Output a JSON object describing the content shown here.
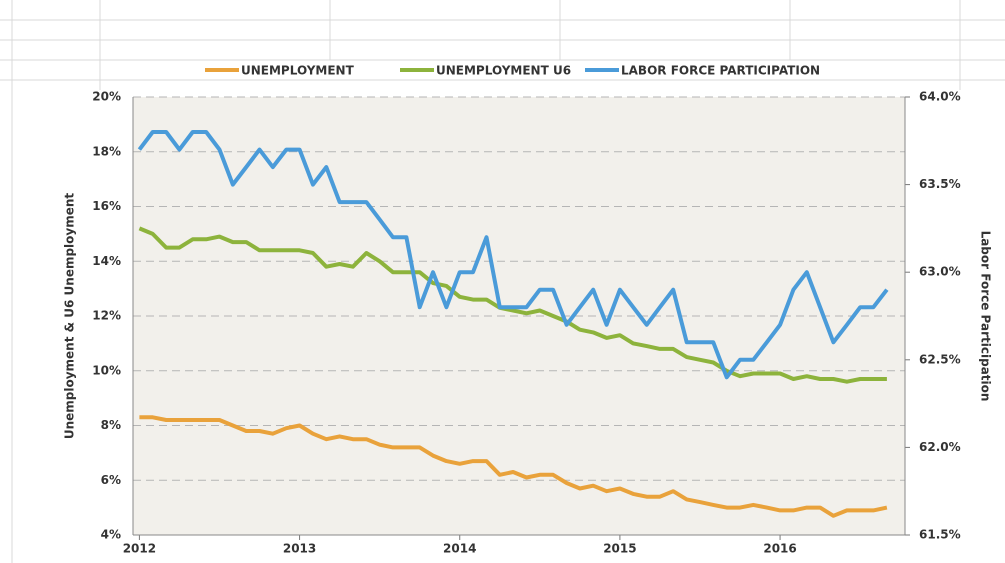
{
  "chart_data": {
    "type": "line",
    "series": [
      {
        "name": "UNEMPLOYMENT",
        "color": "#e9a23b",
        "axis": "y",
        "values": [
          8.3,
          8.3,
          8.2,
          8.2,
          8.2,
          8.2,
          8.2,
          8.0,
          7.8,
          7.8,
          7.7,
          7.9,
          8.0,
          7.7,
          7.5,
          7.6,
          7.5,
          7.5,
          7.3,
          7.2,
          7.2,
          7.2,
          6.9,
          6.7,
          6.6,
          6.7,
          6.7,
          6.2,
          6.3,
          6.1,
          6.2,
          6.2,
          5.9,
          5.7,
          5.8,
          5.6,
          5.7,
          5.5,
          5.4,
          5.4,
          5.6,
          5.3,
          5.2,
          5.1,
          5.0,
          5.0,
          5.1,
          5.0,
          4.9,
          4.9,
          5.0,
          5.0,
          4.7,
          4.9,
          4.9,
          4.9,
          5.0
        ]
      },
      {
        "name": "UNEMPLOYMENT U6",
        "color": "#8db33c",
        "axis": "y",
        "values": [
          15.2,
          15.0,
          14.5,
          14.5,
          14.8,
          14.8,
          14.9,
          14.7,
          14.7,
          14.4,
          14.4,
          14.4,
          14.4,
          14.3,
          13.8,
          13.9,
          13.8,
          14.3,
          14.0,
          13.6,
          13.6,
          13.6,
          13.2,
          13.1,
          12.7,
          12.6,
          12.6,
          12.3,
          12.2,
          12.1,
          12.2,
          12.0,
          11.8,
          11.5,
          11.4,
          11.2,
          11.3,
          11.0,
          10.9,
          10.8,
          10.8,
          10.5,
          10.4,
          10.3,
          10.0,
          9.8,
          9.9,
          9.9,
          9.9,
          9.7,
          9.8,
          9.7,
          9.7,
          9.6,
          9.7,
          9.7,
          9.7
        ]
      },
      {
        "name": "LABOR FORCE PARTICIPATION",
        "color": "#4a9bd9",
        "axis": "y2",
        "values": [
          63.7,
          63.8,
          63.8,
          63.7,
          63.8,
          63.8,
          63.7,
          63.5,
          63.6,
          63.7,
          63.6,
          63.7,
          63.7,
          63.5,
          63.6,
          63.4,
          63.4,
          63.4,
          63.3,
          63.2,
          63.2,
          62.8,
          63.0,
          62.8,
          63.0,
          63.0,
          63.2,
          62.8,
          62.8,
          62.8,
          62.9,
          62.9,
          62.7,
          62.8,
          62.9,
          62.7,
          62.9,
          62.8,
          62.7,
          62.8,
          62.9,
          62.6,
          62.6,
          62.6,
          62.4,
          62.5,
          62.5,
          62.6,
          62.7,
          62.9,
          63.0,
          62.8,
          62.6,
          62.7,
          62.8,
          62.8,
          62.9
        ]
      }
    ],
    "x": [
      2012,
      2012.083,
      2012.167,
      2012.25,
      2012.333,
      2012.417,
      2012.5,
      2012.583,
      2012.667,
      2012.75,
      2012.833,
      2012.917,
      2013,
      2013.083,
      2013.167,
      2013.25,
      2013.333,
      2013.417,
      2013.5,
      2013.583,
      2013.667,
      2013.75,
      2013.833,
      2013.917,
      2014,
      2014.083,
      2014.167,
      2014.25,
      2014.333,
      2014.417,
      2014.5,
      2014.583,
      2014.667,
      2014.75,
      2014.833,
      2014.917,
      2015,
      2015.083,
      2015.167,
      2015.25,
      2015.333,
      2015.417,
      2015.5,
      2015.583,
      2015.667,
      2015.75,
      2015.833,
      2015.917,
      2016,
      2016.083,
      2016.167,
      2016.25,
      2016.333,
      2016.417,
      2016.5,
      2016.583,
      2016.667
    ],
    "xlim": [
      2011.96,
      2016.78
    ],
    "xticks": [
      2012,
      2013,
      2014,
      2015,
      2016
    ],
    "ylim": [
      4,
      20
    ],
    "yticks": [
      {
        "value": 4,
        "label": "4%"
      },
      {
        "value": 6,
        "label": "6%"
      },
      {
        "value": 8,
        "label": "8%"
      },
      {
        "value": 10,
        "label": "10%"
      },
      {
        "value": 12,
        "label": "12%"
      },
      {
        "value": 14,
        "label": "14%"
      },
      {
        "value": 16,
        "label": "16%"
      },
      {
        "value": 18,
        "label": "18%"
      },
      {
        "value": 20,
        "label": "20%"
      }
    ],
    "y2lim": [
      61.5,
      64.0
    ],
    "y2ticks": [
      {
        "value": 61.5,
        "label": "61.5%"
      },
      {
        "value": 62.0,
        "label": "62.0%"
      },
      {
        "value": 62.5,
        "label": "62.5%"
      },
      {
        "value": 63.0,
        "label": "63.0%"
      },
      {
        "value": 63.5,
        "label": "63.5%"
      },
      {
        "value": 64.0,
        "label": "64.0%"
      }
    ],
    "ylabel": "Unemployment & U6 Unemployment",
    "y2label": "Labor Force Participation",
    "grid": true,
    "legend": "top"
  }
}
